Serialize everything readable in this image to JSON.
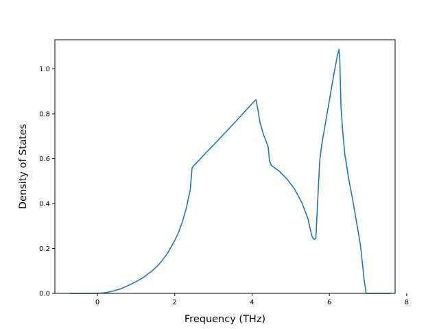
{
  "chart_data": {
    "type": "line",
    "title": "",
    "xlabel": "Frequency (THz)",
    "ylabel": "Density of States",
    "xlim": [
      -1.1,
      7.7
    ],
    "ylim": [
      0.0,
      1.13
    ],
    "xticks": [
      0,
      2,
      4,
      6,
      8
    ],
    "xtick_labels": [
      "0",
      "2",
      "4",
      "6",
      "8"
    ],
    "yticks": [
      0.0,
      0.2,
      0.4,
      0.6,
      0.8,
      1.0
    ],
    "ytick_labels": [
      "0.0",
      "0.2",
      "0.4",
      "0.6",
      "0.8",
      "1.0"
    ],
    "grid": false,
    "series": [
      {
        "color": "#1f77b4",
        "x": [
          -0.7,
          -0.3,
          0.0,
          0.2,
          0.4,
          0.6,
          0.8,
          1.0,
          1.2,
          1.4,
          1.6,
          1.8,
          2.0,
          2.1,
          2.2,
          2.3,
          2.4,
          2.45,
          2.5,
          2.6,
          2.8,
          3.0,
          3.2,
          3.4,
          3.6,
          3.8,
          4.0,
          4.1,
          4.15,
          4.2,
          4.3,
          4.35,
          4.42,
          4.45,
          4.5,
          4.7,
          4.9,
          5.1,
          5.3,
          5.45,
          5.5,
          5.55,
          5.6,
          5.65,
          5.7,
          5.75,
          5.8,
          5.9,
          6.0,
          6.1,
          6.2,
          6.25,
          6.27,
          6.3,
          6.35,
          6.4,
          6.5,
          6.6,
          6.7,
          6.75,
          6.8,
          6.9,
          6.95,
          7.2,
          7.6
        ],
        "y": [
          0.0,
          0.0,
          0.0,
          0.003,
          0.01,
          0.02,
          0.035,
          0.052,
          0.072,
          0.098,
          0.13,
          0.175,
          0.235,
          0.272,
          0.32,
          0.38,
          0.46,
          0.56,
          0.57,
          0.588,
          0.625,
          0.66,
          0.697,
          0.733,
          0.77,
          0.808,
          0.845,
          0.863,
          0.82,
          0.765,
          0.705,
          0.685,
          0.65,
          0.59,
          0.57,
          0.545,
          0.51,
          0.465,
          0.4,
          0.33,
          0.29,
          0.255,
          0.24,
          0.245,
          0.42,
          0.59,
          0.66,
          0.76,
          0.86,
          0.96,
          1.055,
          1.087,
          1.04,
          0.83,
          0.71,
          0.62,
          0.51,
          0.42,
          0.32,
          0.27,
          0.22,
          0.06,
          0.0,
          0.0,
          0.0
        ]
      }
    ]
  }
}
